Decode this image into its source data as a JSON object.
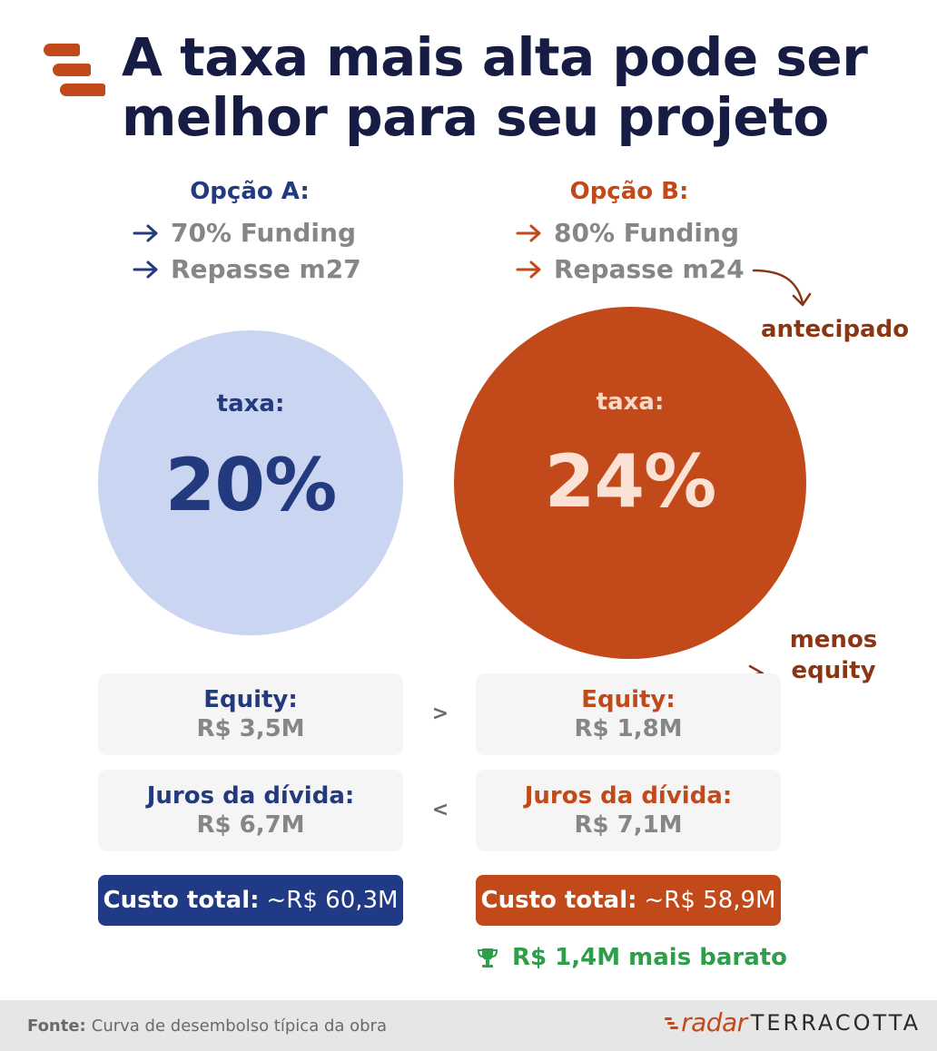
{
  "header": {
    "title_line1": "A taxa mais alta pode ser",
    "title_line2": "melhor para seu projeto"
  },
  "option_a": {
    "title": "Opção A:",
    "bullets": [
      "70% Funding",
      "Repasse m27"
    ],
    "rate_label": "taxa:",
    "rate_value": "20%",
    "equity_label": "Equity:",
    "equity_value": "R$ 3,5M",
    "interest_label": "Juros da dívida:",
    "interest_value": "R$ 6,7M",
    "total_label": "Custo total:",
    "total_value": "~R$ 60,3M",
    "color": "#213a85",
    "circle_color": "#c9d5f1"
  },
  "option_b": {
    "title": "Opção B:",
    "bullets": [
      "80% Funding",
      "Repasse m24"
    ],
    "rate_label": "taxa:",
    "rate_value": "24%",
    "equity_label": "Equity:",
    "equity_value": "R$ 1,8M",
    "interest_label": "Juros da dívida:",
    "interest_value": "R$ 7,1M",
    "total_label": "Custo total:",
    "total_value": "~R$ 58,9M",
    "color": "#c24a1a"
  },
  "annotations": {
    "antecipado": "antecipado",
    "menos_equity": "menos equity"
  },
  "comparisons": {
    "equity": ">",
    "interest": "<"
  },
  "savings": {
    "icon": "trophy-icon",
    "text": "R$ 1,4M mais barato",
    "color": "#2f9e4a"
  },
  "footer": {
    "source_label": "Fonte:",
    "source_text": "Curva de desembolso típica da obra",
    "brand_radar": "radar",
    "brand_terracotta": "TERRACOTTA"
  }
}
